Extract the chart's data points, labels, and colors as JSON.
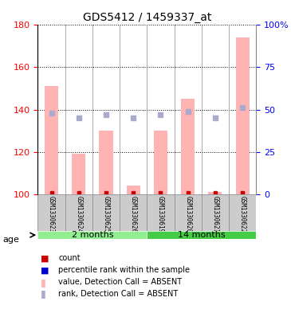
{
  "title": "GDS5412 / 1459337_at",
  "samples": [
    "GSM1330623",
    "GSM1330624",
    "GSM1330625",
    "GSM1330626",
    "GSM1330619",
    "GSM1330620",
    "GSM1330621",
    "GSM1330622"
  ],
  "bar_values": [
    151,
    119,
    130,
    104,
    130,
    145,
    101,
    174
  ],
  "rank_values": [
    48,
    45,
    47,
    45,
    47,
    49,
    45,
    51
  ],
  "ylim_left": [
    100,
    180
  ],
  "ylim_right": [
    0,
    100
  ],
  "yticks_left": [
    100,
    120,
    140,
    160,
    180
  ],
  "yticks_right": [
    0,
    25,
    50,
    75,
    100
  ],
  "ytick_labels_right": [
    "0",
    "25",
    "50",
    "75",
    "100%"
  ],
  "bar_color": "#FFB3B3",
  "rank_color": "#AAAACC",
  "groups": [
    {
      "label": "2 months",
      "start": 0,
      "end": 4,
      "color": "#90EE90"
    },
    {
      "label": "14 months",
      "start": 4,
      "end": 8,
      "color": "#44CC44"
    }
  ],
  "age_label": "age",
  "legend_items": [
    {
      "color": "#CC0000",
      "label": "count"
    },
    {
      "color": "#0000CC",
      "label": "percentile rank within the sample"
    },
    {
      "color": "#FFB3B3",
      "label": "value, Detection Call = ABSENT"
    },
    {
      "color": "#AAAACC",
      "label": "rank, Detection Call = ABSENT"
    }
  ],
  "grid_color": "black",
  "grid_style": "dotted",
  "background_plot": "#FFFFFF",
  "background_xtick": "#CCCCCC"
}
